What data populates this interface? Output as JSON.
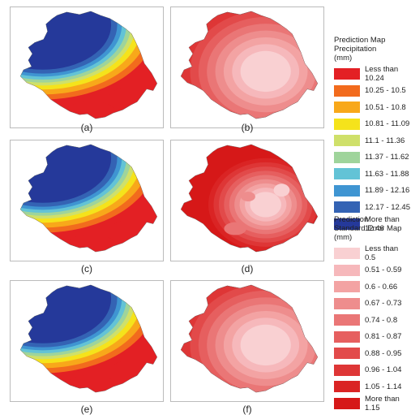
{
  "panels": [
    {
      "label": "(a)",
      "kind": "precip"
    },
    {
      "label": "(b)",
      "kind": "error"
    },
    {
      "label": "(c)",
      "kind": "precip"
    },
    {
      "label": "(d)",
      "kind": "error"
    },
    {
      "label": "(e)",
      "kind": "precip"
    },
    {
      "label": "(f)",
      "kind": "error"
    }
  ],
  "legend_precip": {
    "title_lines": [
      "Prediction Map",
      "Precipitation",
      "(mm)"
    ],
    "items": [
      {
        "label": "Less than 10.24",
        "color": "#e32024"
      },
      {
        "label": "10.25 - 10.5",
        "color": "#f26b1d"
      },
      {
        "label": "10.51 - 10.8",
        "color": "#f8a81a"
      },
      {
        "label": "10.81 - 11.09",
        "color": "#f5e31b"
      },
      {
        "label": "11.1 - 11.36",
        "color": "#cfe06a"
      },
      {
        "label": "11.37 - 11.62",
        "color": "#9fd49b"
      },
      {
        "label": "11.63 - 11.88",
        "color": "#63c3d6"
      },
      {
        "label": "11.89 - 12.16",
        "color": "#3f95d2"
      },
      {
        "label": "12.17 - 12.45",
        "color": "#3463b4"
      },
      {
        "label": "More than 12.46",
        "color": "#25399a"
      }
    ]
  },
  "legend_error": {
    "title_lines": [
      "Prediction",
      "Standard Error Map",
      "(mm)"
    ],
    "items": [
      {
        "label": "Less than 0.5",
        "color": "#f9d0d2"
      },
      {
        "label": "0.51 - 0.59",
        "color": "#f6b8bb"
      },
      {
        "label": "0.6 - 0.66",
        "color": "#f3a3a3"
      },
      {
        "label": "0.67 - 0.73",
        "color": "#ee8d8d"
      },
      {
        "label": "0.74 - 0.8",
        "color": "#ea7676"
      },
      {
        "label": "0.81 - 0.87",
        "color": "#e65f5f"
      },
      {
        "label": "0.88 - 0.95",
        "color": "#e24a4a"
      },
      {
        "label": "0.96 - 1.04",
        "color": "#de3636"
      },
      {
        "label": "1.05 - 1.14",
        "color": "#da2424"
      },
      {
        "label": "More than 1.15",
        "color": "#d61818"
      }
    ]
  }
}
